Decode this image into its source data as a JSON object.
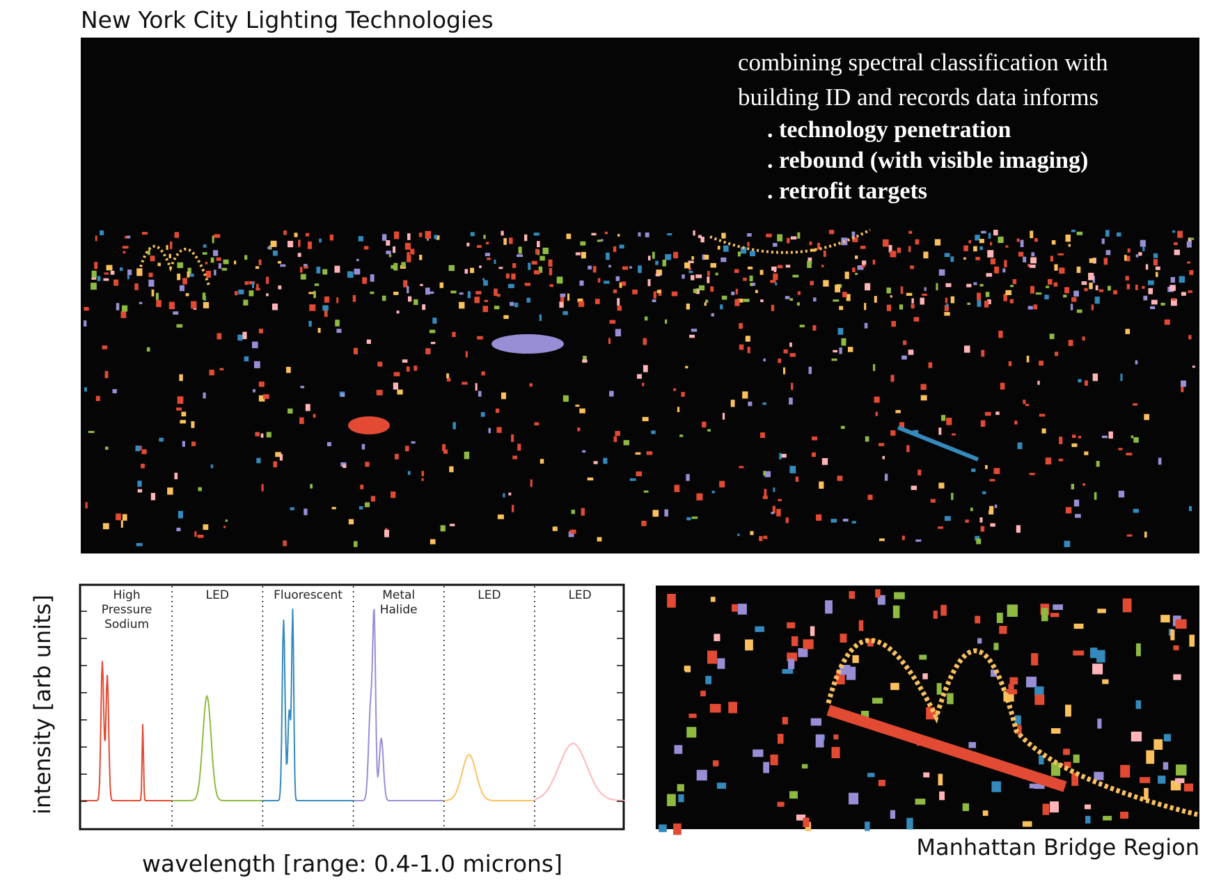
{
  "title": "New York City Lighting Technologies",
  "annotation": {
    "intro": [
      "combining spectral classification with",
      "building ID and records data informs"
    ],
    "bullets": [
      ". technology penetration",
      ". rebound (with visible imaging)",
      ". retrofit targets"
    ]
  },
  "spectra_panel": {
    "ylabel": "intensity [arb units]",
    "xlabel": "wavelength [range: 0.4-1.0 microns]",
    "sections": [
      {
        "label": [
          "High",
          "Pressure",
          "Sodium"
        ],
        "color": "#e24a33"
      },
      {
        "label": [
          "LED"
        ],
        "color": "#8eba42"
      },
      {
        "label": [
          "Fluorescent"
        ],
        "color": "#348abd"
      },
      {
        "label": [
          "Metal",
          "Halide"
        ],
        "color": "#988ed5"
      },
      {
        "label": [
          "LED"
        ],
        "color": "#fbc15e"
      },
      {
        "label": [
          "LED"
        ],
        "color": "#ffb5b8"
      }
    ]
  },
  "inset": {
    "caption": "Manhattan Bridge Region"
  }
}
